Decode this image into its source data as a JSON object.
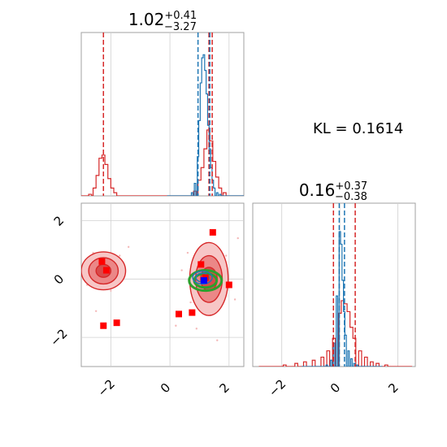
{
  "chart_data": {
    "type": "corner",
    "params": [
      "p1",
      "p2"
    ],
    "kl_text": "KL = 0.1614",
    "titles": {
      "p1": {
        "median": "1.02",
        "plus": "+0.41",
        "minus": "−3.27"
      },
      "p2": {
        "median": "0.16",
        "plus": "+0.37",
        "minus": "−0.38"
      }
    },
    "axes": {
      "p1_range": [
        -3.0,
        2.5
      ],
      "p2_range": [
        -3.0,
        2.6
      ],
      "p1_ticks": [
        -2,
        0,
        2
      ],
      "p2_ticks": [
        -2,
        0,
        2
      ],
      "p1_tick_labels": [
        "−2",
        "0",
        "2"
      ],
      "p2_tick_labels": [
        "−2",
        "0",
        "2"
      ],
      "grid": true
    },
    "colors": {
      "blue": "#1f77b4",
      "red": "#d62728",
      "green": "#2ca02c",
      "marker": "#ff0000",
      "marker_blue": "#0000ff"
    },
    "quantiles": {
      "p1_blue": [
        0.95,
        1.35
      ],
      "p1_red": [
        -2.25,
        1.32,
        1.43
      ],
      "p2_blue": [
        -0.02,
        0.16
      ],
      "p2_red": [
        -0.22,
        0.53
      ]
    },
    "hist_p1_blue": {
      "x": [
        0.75,
        0.85,
        0.95,
        1.0,
        1.05,
        1.1,
        1.15,
        1.2,
        1.25,
        1.3,
        1.35,
        1.4,
        1.45,
        1.5,
        1.6,
        1.7
      ],
      "y": [
        0.02,
        0.08,
        0.25,
        0.48,
        0.72,
        0.88,
        0.9,
        0.8,
        0.65,
        0.45,
        0.3,
        0.18,
        0.1,
        0.05,
        0.02,
        0.01
      ]
    },
    "hist_p1_red": {
      "x": [
        -2.7,
        -2.55,
        -2.45,
        -2.35,
        -2.25,
        -2.15,
        -2.05,
        -1.95,
        -1.85,
        0.85,
        1.0,
        1.1,
        1.2,
        1.3,
        1.4,
        1.5,
        1.6,
        1.7,
        1.85
      ],
      "y": [
        0.01,
        0.05,
        0.13,
        0.24,
        0.26,
        0.2,
        0.11,
        0.05,
        0.02,
        0.03,
        0.1,
        0.18,
        0.3,
        0.42,
        0.35,
        0.22,
        0.12,
        0.05,
        0.02
      ]
    },
    "hist_p2_blue": {
      "x": [
        -0.45,
        -0.3,
        -0.2,
        -0.1,
        0.0,
        0.05,
        0.1,
        0.15,
        0.2,
        0.3,
        0.4,
        0.5,
        0.6
      ],
      "y": [
        0.01,
        0.04,
        0.15,
        0.45,
        0.86,
        0.78,
        0.55,
        0.35,
        0.2,
        0.1,
        0.05,
        0.02,
        0.01
      ]
    },
    "hist_p2_red": {
      "x": [
        -1.9,
        -1.5,
        -1.2,
        -0.9,
        -0.6,
        -0.4,
        -0.2,
        0.0,
        0.1,
        0.2,
        0.3,
        0.4,
        0.5,
        0.7,
        0.9,
        1.1,
        1.3,
        1.6
      ],
      "y": [
        0.01,
        0.02,
        0.03,
        0.04,
        0.06,
        0.1,
        0.18,
        0.34,
        0.42,
        0.4,
        0.35,
        0.25,
        0.18,
        0.1,
        0.06,
        0.03,
        0.02,
        0.01
      ]
    },
    "contour_red_modes": [
      {
        "center": [
          -2.25,
          0.28
        ],
        "levels": [
          [
            0.75,
            0.65
          ],
          [
            0.5,
            0.45
          ],
          [
            0.25,
            0.22
          ]
        ]
      },
      {
        "center": [
          1.32,
          0.0
        ],
        "levels": [
          [
            0.65,
            1.25
          ],
          [
            0.45,
            0.8
          ],
          [
            0.28,
            0.4
          ]
        ]
      }
    ],
    "contour_blue": {
      "center": [
        1.1,
        0.05
      ],
      "levels": [
        [
          0.33,
          0.22
        ],
        [
          0.22,
          0.15
        ]
      ]
    },
    "contour_green": {
      "center": [
        1.2,
        -0.05
      ],
      "levels": [
        [
          0.55,
          0.35
        ],
        [
          0.38,
          0.24
        ]
      ]
    },
    "markers_red": [
      [
        -2.3,
        0.6
      ],
      [
        -2.15,
        0.3
      ],
      [
        -2.25,
        -1.6
      ],
      [
        -1.8,
        -1.5
      ],
      [
        0.3,
        -1.2
      ],
      [
        0.75,
        -1.15
      ],
      [
        1.05,
        0.5
      ],
      [
        1.45,
        1.6
      ],
      [
        2.0,
        -0.2
      ],
      [
        1.2,
        0.05
      ]
    ],
    "marker_blue_xy": [
      1.15,
      -0.05
    ],
    "scatter_red": [
      [
        -2.6,
        0.9
      ],
      [
        -2.0,
        -0.4
      ],
      [
        -1.7,
        0.8
      ],
      [
        -2.8,
        -0.2
      ],
      [
        0.6,
        0.9
      ],
      [
        0.7,
        -0.8
      ],
      [
        1.9,
        0.8
      ],
      [
        2.2,
        -0.7
      ],
      [
        0.2,
        -1.6
      ],
      [
        1.6,
        -2.1
      ],
      [
        -1.4,
        1.1
      ],
      [
        -2.5,
        -1.1
      ],
      [
        0.9,
        -1.7
      ],
      [
        2.3,
        1.4
      ],
      [
        0.4,
        0.3
      ]
    ]
  }
}
